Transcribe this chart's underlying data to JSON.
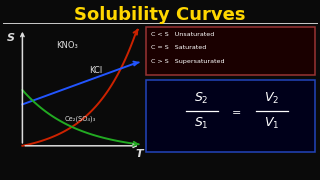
{
  "title": "Solubility Curves",
  "title_color": "#FFD700",
  "bg_color": "#0a0a0a",
  "line_color": "#CCCCCC",
  "kno3_label": "KNO₃",
  "kcl_label": "KCl",
  "ce2so4_label": "Ce₂(SO₄)₃",
  "s_label": "S",
  "t_label": "T",
  "kno3_color": "#CC2200",
  "kcl_color": "#2255FF",
  "ce2so4_color": "#22AA22",
  "axis_color": "#DDDDDD",
  "legend_lines": [
    "C < S   Unsaturated",
    "C = S   Saturated",
    "C > S   Supersaturated"
  ],
  "text_color": "#FFFFFF",
  "box1_edge": "#993333",
  "box2_edge": "#2244BB",
  "box1_face": "#1a0000",
  "box2_face": "#00001a"
}
